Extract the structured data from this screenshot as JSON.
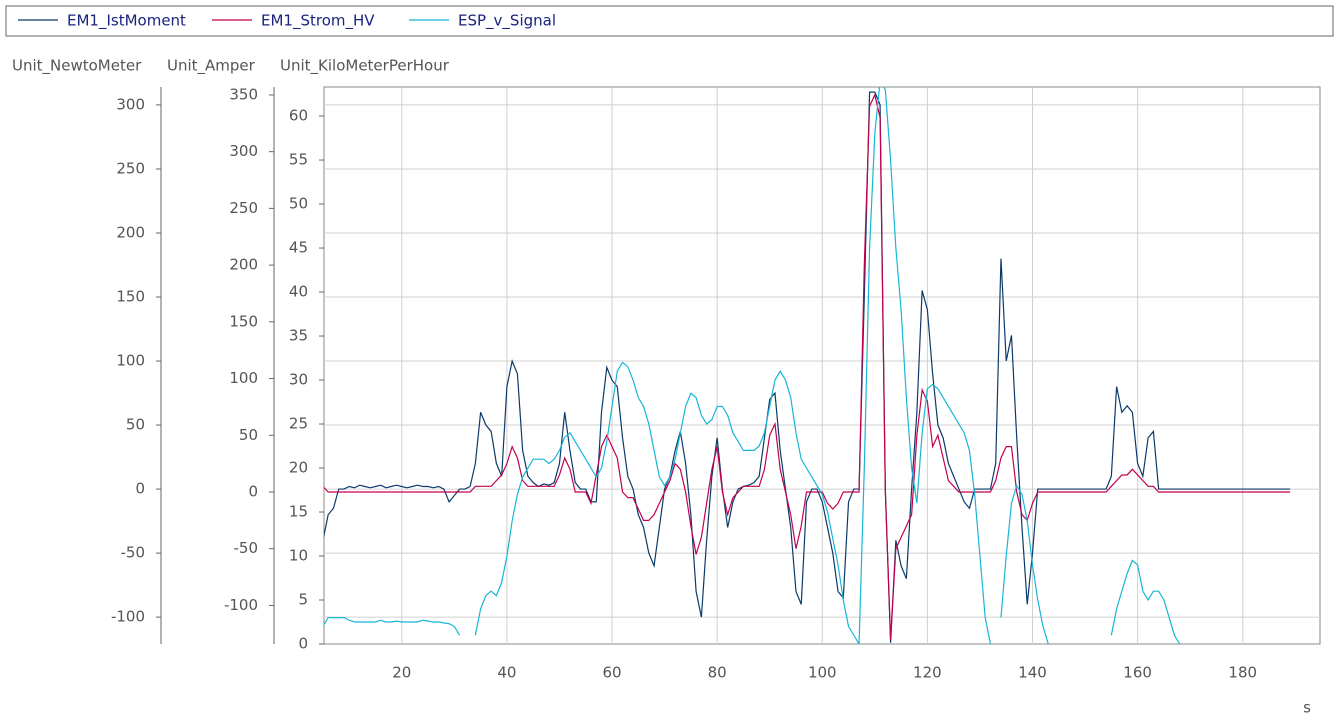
{
  "chart_data": {
    "type": "line",
    "x": [
      5,
      6,
      7,
      8,
      9,
      10,
      11,
      12,
      13,
      14,
      15,
      16,
      17,
      18,
      19,
      20,
      21,
      22,
      23,
      24,
      25,
      26,
      27,
      28,
      29,
      30,
      31,
      32,
      33,
      34,
      35,
      36,
      37,
      38,
      39,
      40,
      41,
      42,
      43,
      44,
      45,
      46,
      47,
      48,
      49,
      50,
      51,
      52,
      53,
      54,
      55,
      56,
      57,
      58,
      59,
      60,
      61,
      62,
      63,
      64,
      65,
      66,
      67,
      68,
      69,
      70,
      71,
      72,
      73,
      74,
      75,
      76,
      77,
      78,
      79,
      80,
      81,
      82,
      83,
      84,
      85,
      86,
      87,
      88,
      89,
      90,
      91,
      92,
      93,
      94,
      95,
      96,
      97,
      98,
      99,
      100,
      101,
      102,
      103,
      104,
      105,
      106,
      107,
      108,
      109,
      110,
      111,
      112,
      113,
      114,
      115,
      116,
      117,
      118,
      119,
      120,
      121,
      122,
      123,
      124,
      125,
      126,
      127,
      128,
      129,
      130,
      131,
      132,
      133,
      134,
      135,
      136,
      137,
      138,
      139,
      140,
      141,
      142,
      143,
      144,
      145,
      146,
      147,
      148,
      149,
      150,
      151,
      152,
      153,
      154,
      155,
      156,
      157,
      158,
      159,
      160,
      161,
      162,
      163,
      164,
      165,
      166,
      167,
      168,
      169,
      170,
      171,
      172,
      173,
      174,
      175,
      176,
      177,
      178,
      179,
      180,
      181,
      182,
      183,
      184,
      185,
      186,
      187,
      188,
      189
    ],
    "xlim": [
      5.2,
      194.7
    ],
    "xticks": [
      20,
      40,
      60,
      80,
      100,
      120,
      140,
      160,
      180
    ],
    "xlabel": "s",
    "ylabel": "Unit_NewtoMeter",
    "ylim": [
      -121,
      314
    ],
    "yticks": [
      -100,
      -50,
      0,
      50,
      100,
      150,
      200,
      250,
      300
    ],
    "y2label": "Unit_Amper",
    "y2lim": [
      -134,
      357
    ],
    "y2ticks": [
      -100,
      -50,
      0,
      50,
      100,
      150,
      200,
      250,
      300,
      350
    ],
    "y3label": "Unit_KiloMeterPerHour",
    "y3lim": [
      0,
      63.3
    ],
    "y3ticks": [
      0,
      5,
      10,
      15,
      20,
      25,
      30,
      35,
      40,
      45,
      50,
      55,
      60
    ],
    "grid": true,
    "legend": "top",
    "series": [
      {
        "name": "EM1_IstMoment",
        "color": "#0b3a6a",
        "axis": "y",
        "values": [
          -40,
          -20,
          -15,
          0,
          0,
          2,
          1,
          3,
          2,
          1,
          2,
          3,
          1,
          2,
          3,
          2,
          1,
          2,
          3,
          2,
          2,
          1,
          2,
          0,
          -10,
          -5,
          0,
          0,
          2,
          20,
          60,
          50,
          45,
          20,
          10,
          80,
          100,
          90,
          30,
          10,
          5,
          2,
          4,
          3,
          5,
          20,
          60,
          30,
          5,
          0,
          0,
          -10,
          -10,
          60,
          95,
          85,
          80,
          40,
          10,
          0,
          -20,
          -30,
          -50,
          -60,
          -30,
          0,
          10,
          30,
          45,
          20,
          -20,
          -80,
          -100,
          -40,
          10,
          40,
          0,
          -30,
          -10,
          0,
          2,
          3,
          5,
          10,
          40,
          70,
          75,
          30,
          0,
          -30,
          -80,
          -90,
          -10,
          0,
          0,
          -10,
          -30,
          -50,
          -80,
          -85,
          -10,
          0,
          0,
          150,
          310,
          310,
          300,
          0,
          -120,
          -40,
          -60,
          -70,
          0,
          60,
          155,
          140,
          90,
          50,
          40,
          20,
          10,
          0,
          -10,
          -15,
          0,
          0,
          0,
          0,
          20,
          180,
          100,
          120,
          40,
          -30,
          -90,
          -50,
          0,
          0,
          0,
          0,
          0,
          0,
          0,
          0,
          0,
          0,
          0,
          0,
          0,
          0,
          10,
          80,
          60,
          65,
          60,
          20,
          10,
          40,
          45,
          0,
          0,
          0,
          0,
          0,
          0,
          0,
          0,
          0,
          0,
          0,
          0,
          0,
          0,
          0,
          0,
          0,
          0,
          0,
          0,
          0,
          0,
          0,
          0,
          0,
          0
        ]
      },
      {
        "name": "EM1_Strom_HV",
        "color": "#c2004f",
        "axis": "y2",
        "values": [
          5,
          0,
          0,
          0,
          0,
          0,
          0,
          0,
          0,
          0,
          0,
          0,
          0,
          0,
          0,
          0,
          0,
          0,
          0,
          0,
          0,
          0,
          0,
          0,
          0,
          0,
          0,
          0,
          0,
          5,
          5,
          5,
          5,
          10,
          15,
          25,
          40,
          30,
          10,
          5,
          5,
          5,
          5,
          5,
          5,
          15,
          30,
          20,
          0,
          0,
          0,
          -10,
          15,
          40,
          50,
          40,
          30,
          0,
          -5,
          -5,
          -15,
          -25,
          -25,
          -20,
          -10,
          0,
          10,
          25,
          20,
          0,
          -30,
          -55,
          -40,
          -10,
          20,
          40,
          0,
          -20,
          -5,
          0,
          5,
          5,
          5,
          5,
          20,
          50,
          60,
          20,
          0,
          -20,
          -50,
          -30,
          0,
          0,
          0,
          0,
          -10,
          -15,
          -10,
          0,
          0,
          0,
          0,
          200,
          340,
          350,
          330,
          0,
          -130,
          -50,
          -40,
          -30,
          -20,
          50,
          90,
          80,
          40,
          50,
          30,
          10,
          5,
          0,
          0,
          0,
          0,
          0,
          0,
          0,
          10,
          30,
          40,
          40,
          0,
          -20,
          -25,
          -10,
          0,
          0,
          0,
          0,
          0,
          0,
          0,
          0,
          0,
          0,
          0,
          0,
          0,
          0,
          5,
          10,
          15,
          15,
          20,
          15,
          10,
          5,
          5,
          0,
          0,
          0,
          0,
          0,
          0,
          0,
          0,
          0,
          0,
          0,
          0,
          0,
          0,
          0,
          0,
          0,
          0,
          0,
          0,
          0,
          0,
          0,
          0,
          0,
          0
        ]
      },
      {
        "name": "ESP_v_Signal",
        "color": "#17b5d6",
        "axis": "y3",
        "values": [
          2,
          3,
          3,
          3,
          3,
          2.7,
          2.5,
          2.5,
          2.5,
          2.5,
          2.5,
          2.7,
          2.5,
          2.5,
          2.6,
          2.5,
          2.5,
          2.5,
          2.5,
          2.7,
          2.6,
          2.5,
          2.5,
          2.4,
          2.3,
          2,
          1,
          null,
          null,
          1,
          4,
          5.5,
          6,
          5.5,
          7,
          10,
          14,
          17,
          19,
          20,
          21,
          21,
          21,
          20.5,
          21,
          22,
          23.5,
          24,
          23,
          22,
          21,
          20,
          19,
          20,
          23,
          27,
          31,
          32,
          31.5,
          30,
          28,
          27,
          25,
          22,
          19,
          18,
          19,
          21,
          24,
          27,
          28.5,
          28,
          26,
          25,
          25.5,
          27,
          27,
          26,
          24,
          23,
          22,
          22,
          22,
          22.5,
          24,
          27,
          30,
          31,
          30,
          28,
          24,
          21,
          20,
          19,
          18,
          17,
          15,
          12,
          9,
          5,
          2,
          1,
          0,
          20,
          45,
          58,
          64,
          63,
          55,
          45,
          38,
          28,
          20,
          16,
          24,
          29,
          29.5,
          29,
          28,
          27,
          26,
          25,
          24,
          22,
          17,
          10,
          3,
          0,
          null,
          3,
          10,
          16,
          18,
          17,
          14,
          9,
          5,
          2,
          0,
          null,
          null,
          null,
          null,
          null,
          null,
          null,
          null,
          null,
          null,
          null,
          1,
          4,
          6,
          8,
          9.5,
          9,
          6,
          5,
          6,
          6,
          5,
          3,
          1,
          0,
          null,
          null,
          null,
          null,
          null,
          null,
          null,
          null,
          null,
          null,
          null,
          null,
          null,
          null,
          null,
          null,
          null,
          null,
          null,
          null,
          null
        ]
      }
    ]
  }
}
